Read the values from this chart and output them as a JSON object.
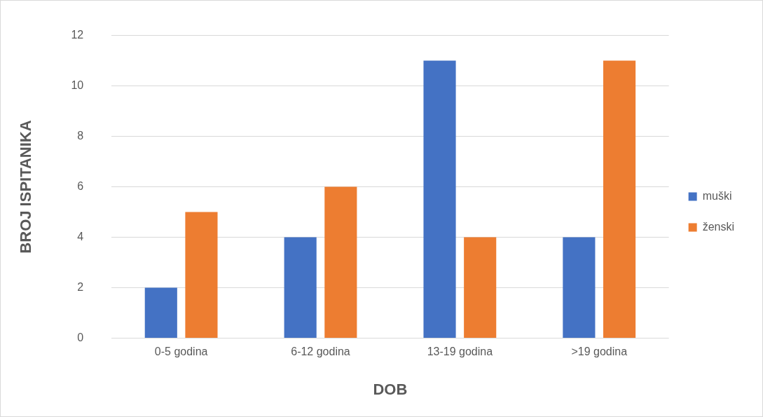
{
  "chart_data": {
    "type": "bar",
    "xlabel": "DOB",
    "ylabel": "BROJ ISPITANIKA",
    "categories": [
      "0-5 godina",
      "6-12 godina",
      "13-19 godina",
      ">19 godina"
    ],
    "series": [
      {
        "name": "muški",
        "color": "#4472c4",
        "values": [
          2,
          4,
          11,
          4
        ]
      },
      {
        "name": "ženski",
        "color": "#ed7d31",
        "values": [
          5,
          6,
          4,
          11
        ]
      }
    ],
    "ylim": [
      0,
      12
    ],
    "yticks": [
      0,
      2,
      4,
      6,
      8,
      10,
      12
    ],
    "grid": "y",
    "legend": "right"
  }
}
